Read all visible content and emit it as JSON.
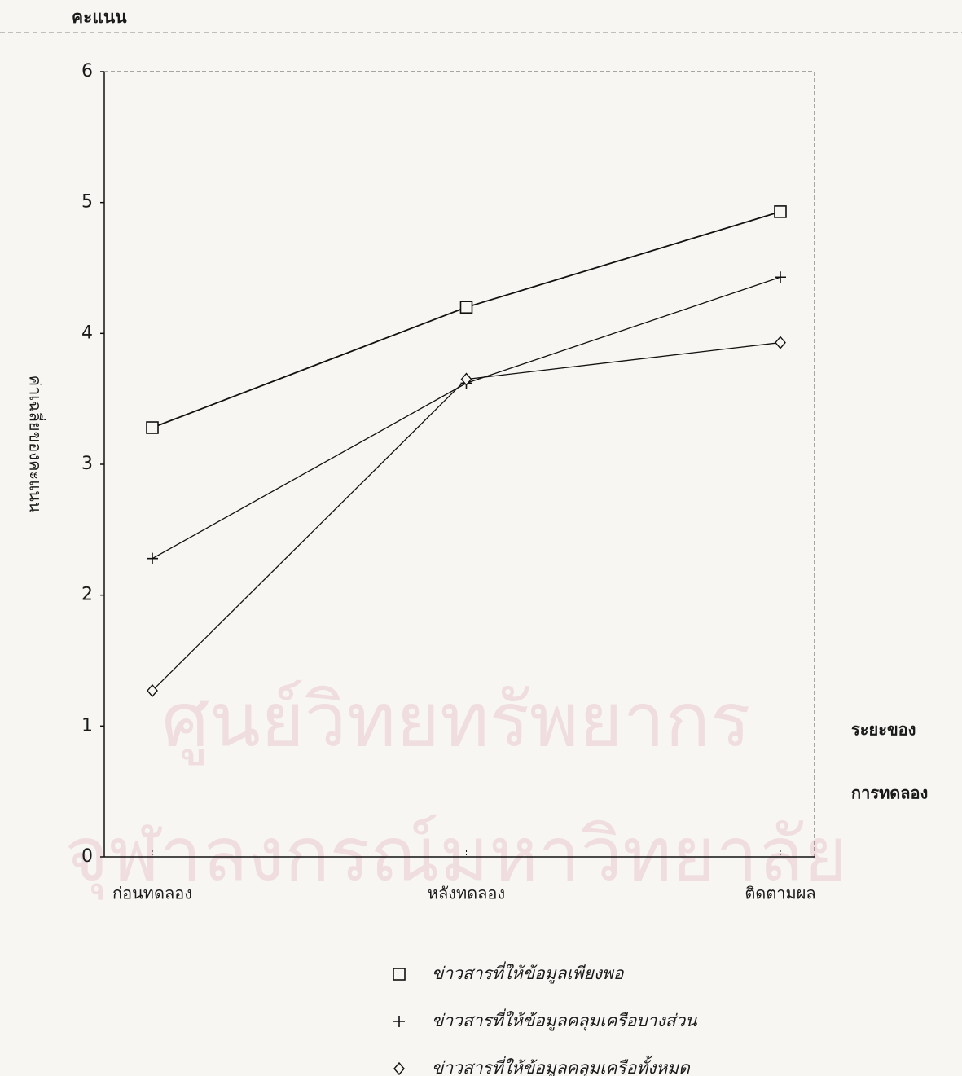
{
  "chart_data": {
    "type": "line",
    "unit_label": "คะแนน",
    "y_label": "ค่าเฉลี่ยของคะแนน",
    "x_label_lines": [
      "ระยะของ",
      "การทดลอง"
    ],
    "watermark_lines": [
      "ศูนย์วิทยทรัพยากร",
      "จุฬาลงกรณ์มหาวิทยาลัย"
    ],
    "categories": [
      "ก่อนทดลอง",
      "หลังทดลอง",
      "ติดตามผล"
    ],
    "series": [
      {
        "name": "ข่าวสารที่ให้ข้อมูลเพียงพอ",
        "marker": "square",
        "color": "#111111",
        "values": [
          3.28,
          4.2,
          4.93
        ]
      },
      {
        "name": "ข่าวสารที่ให้ข้อมูลคลุมเครือบางส่วน",
        "marker": "plus",
        "color": "#111111",
        "values": [
          2.28,
          3.62,
          4.43
        ]
      },
      {
        "name": "ข่าวสารที่ให้ข้อมูลคลุมเครือทั้งหมด",
        "marker": "diamond",
        "color": "#111111",
        "values": [
          1.27,
          3.65,
          3.93
        ]
      }
    ],
    "ylim": [
      0,
      6
    ],
    "yticks": [
      0,
      1,
      2,
      3,
      4,
      5,
      6
    ],
    "grid": false
  }
}
